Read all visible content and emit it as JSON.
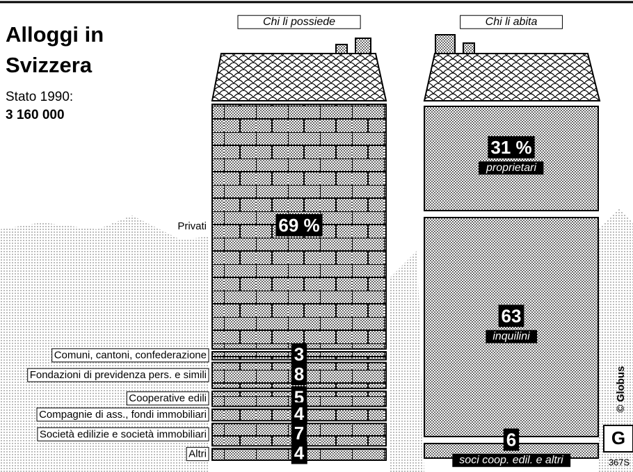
{
  "header": {
    "title_line1": "Alloggi in",
    "title_line2": "Svizzera",
    "subtitle": "Stato 1990:",
    "total": "3 160 000"
  },
  "credit": "© Globus",
  "code": "367S",
  "chart_data": [
    {
      "type": "stacked-column",
      "title": "Chi li possiede",
      "categories": [
        "Privati",
        "Comuni, cantoni, confederazione",
        "Fondazioni di previdenza pers. e simili",
        "Cooperative edili",
        "Compagnie di ass., fondi immobiliari",
        "Società edilizie e società immobiliari",
        "Altri"
      ],
      "values": [
        69,
        3,
        8,
        5,
        4,
        7,
        4
      ],
      "value_labels": [
        "69 %",
        "3",
        "8",
        "5",
        "4",
        "7",
        "4"
      ]
    },
    {
      "type": "stacked-column",
      "title": "Chi li abita",
      "categories": [
        "proprietari",
        "inquilini",
        "soci coop. edil. e altri"
      ],
      "values": [
        31,
        63,
        6
      ],
      "value_labels": [
        "31 %",
        "63",
        "6"
      ]
    }
  ]
}
